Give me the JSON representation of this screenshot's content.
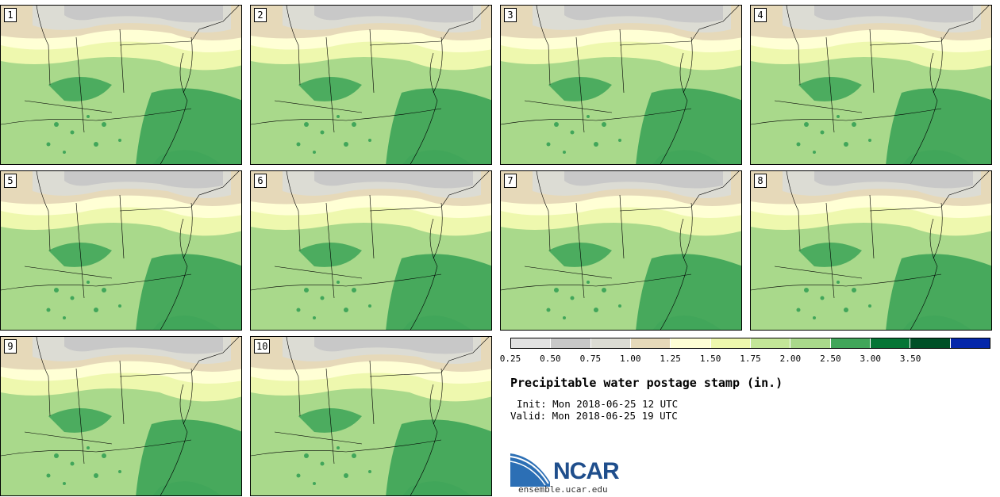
{
  "panels": [
    {
      "label": "1"
    },
    {
      "label": "2"
    },
    {
      "label": "3"
    },
    {
      "label": "4"
    },
    {
      "label": "5"
    },
    {
      "label": "6"
    },
    {
      "label": "7"
    },
    {
      "label": "8"
    },
    {
      "label": "9"
    },
    {
      "label": "10"
    }
  ],
  "legend": {
    "ticks": [
      "0.25",
      "0.50",
      "0.75",
      "1.00",
      "1.25",
      "1.50",
      "1.75",
      "2.00",
      "2.50",
      "3.00",
      "3.50"
    ],
    "colors": [
      "#e1e1e1",
      "#c8c8c8",
      "#dcdcd4",
      "#e6d9b9",
      "#ffffd5",
      "#eef8ae",
      "#c3e698",
      "#a9d98b",
      "#41a65a",
      "#057535",
      "#005027",
      "#0427aa"
    ]
  },
  "title": "Precipitable water postage stamp (in.)",
  "init": "Init: Mon 2018-06-25 12 UTC",
  "valid": "Valid: Mon 2018-06-25 19 UTC",
  "logo": {
    "text": "NCAR",
    "url": "ensemble.ucar.edu"
  }
}
